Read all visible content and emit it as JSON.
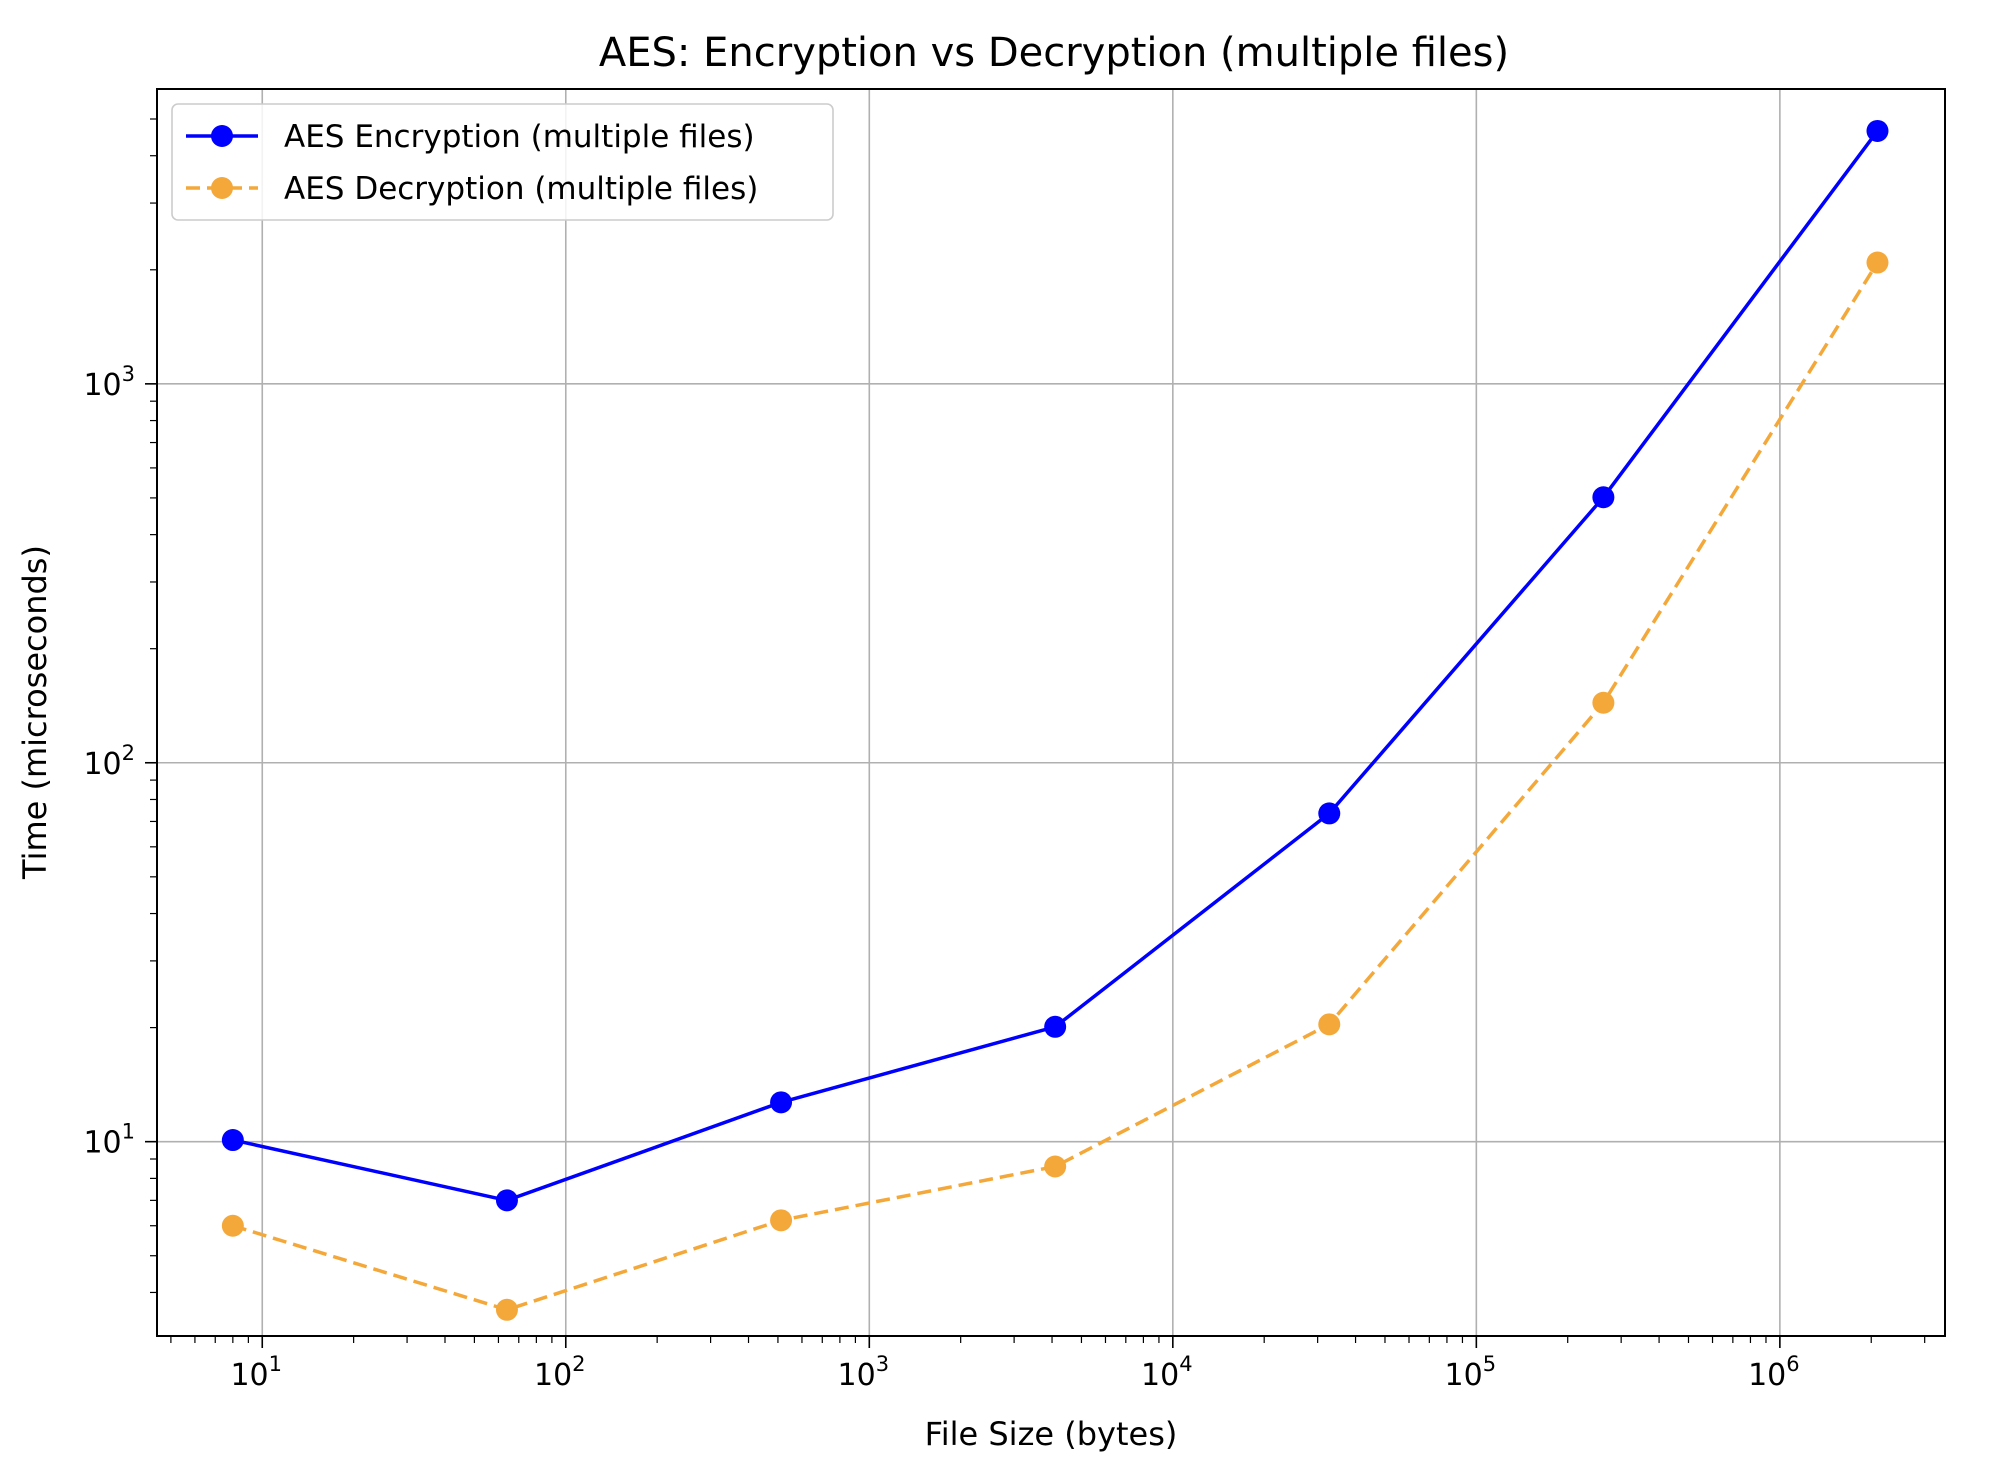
{
  "chart_data": {
    "type": "line",
    "title": "AES: Encryption vs Decryption (multiple files)",
    "xlabel": "File Size (bytes)",
    "ylabel": "Time (microseconds)",
    "xscale": "log",
    "yscale": "log",
    "xlim": [
      4.5,
      3500000
    ],
    "ylim": [
      3.07,
      6000
    ],
    "grid": true,
    "legend_position": "top-left",
    "x": [
      8,
      64,
      512,
      4096,
      32768,
      262144,
      2097152
    ],
    "x_ticks": [
      {
        "value": 10,
        "base": "10",
        "exp": "1"
      },
      {
        "value": 100,
        "base": "10",
        "exp": "2"
      },
      {
        "value": 1000,
        "base": "10",
        "exp": "3"
      },
      {
        "value": 10000,
        "base": "10",
        "exp": "4"
      },
      {
        "value": 100000,
        "base": "10",
        "exp": "5"
      },
      {
        "value": 1000000,
        "base": "10",
        "exp": "6"
      }
    ],
    "y_ticks": [
      {
        "value": 10,
        "base": "10",
        "exp": "1"
      },
      {
        "value": 100,
        "base": "10",
        "exp": "2"
      },
      {
        "value": 1000,
        "base": "10",
        "exp": "3"
      }
    ],
    "series": [
      {
        "name": "AES Encryption (multiple files)",
        "color": "#0000ff",
        "line_style": "solid",
        "marker": "circle",
        "values": [
          10.1,
          7.0,
          12.7,
          20.1,
          73.5,
          502,
          4650
        ]
      },
      {
        "name": "AES Decryption (multiple files)",
        "color": "#f4a83a",
        "line_style": "dashed",
        "marker": "circle",
        "values": [
          6.0,
          3.6,
          6.2,
          8.6,
          20.4,
          144,
          2090
        ]
      }
    ]
  }
}
